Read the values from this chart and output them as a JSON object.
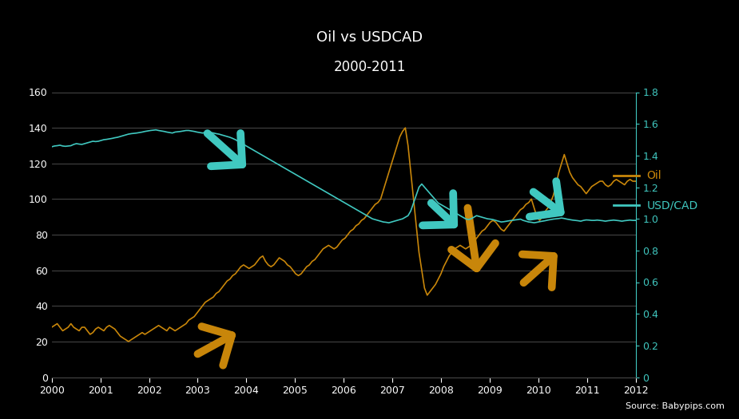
{
  "title_line1": "Oil vs USDCAD",
  "title_line2": "2000-2011",
  "bg_color": "#000000",
  "text_color": "#ffffff",
  "oil_color": "#c8860a",
  "usdcad_color": "#40c8c0",
  "grid_color": "#555555",
  "source_text": "Source: Babypips.com",
  "legend_oil": "Oil",
  "legend_usdcad": "USD/CAD",
  "oil_ylim": [
    0,
    160
  ],
  "usdcad_ylim": [
    0,
    1.8
  ],
  "oil_yticks": [
    0,
    20,
    40,
    60,
    80,
    100,
    120,
    140,
    160
  ],
  "usdcad_yticks": [
    0,
    0.2,
    0.4,
    0.6,
    0.8,
    1.0,
    1.2,
    1.4,
    1.6,
    1.8
  ],
  "xtick_labels": [
    "2000",
    "2001",
    "2002",
    "2003",
    "2004",
    "2005",
    "2006",
    "2007",
    "2008",
    "2009",
    "2010",
    "2011",
    "2012"
  ],
  "oil_data": [
    28,
    29,
    30,
    28,
    26,
    27,
    28,
    30,
    28,
    27,
    26,
    28,
    28,
    26,
    24,
    25,
    27,
    28,
    27,
    26,
    28,
    29,
    28,
    27,
    25,
    23,
    22,
    21,
    20,
    21,
    22,
    23,
    24,
    25,
    24,
    25,
    26,
    27,
    28,
    29,
    28,
    27,
    26,
    28,
    27,
    26,
    27,
    28,
    29,
    30,
    32,
    33,
    34,
    36,
    38,
    40,
    42,
    43,
    44,
    45,
    47,
    48,
    50,
    52,
    54,
    55,
    57,
    58,
    60,
    62,
    63,
    62,
    61,
    62,
    63,
    65,
    67,
    68,
    65,
    63,
    62,
    63,
    65,
    67,
    66,
    65,
    63,
    62,
    60,
    58,
    57,
    58,
    60,
    62,
    63,
    65,
    66,
    68,
    70,
    72,
    73,
    74,
    73,
    72,
    73,
    75,
    77,
    78,
    80,
    82,
    83,
    85,
    86,
    88,
    89,
    91,
    93,
    95,
    97,
    98,
    100,
    105,
    110,
    115,
    120,
    125,
    130,
    135,
    138,
    140,
    130,
    115,
    100,
    85,
    70,
    60,
    50,
    46,
    48,
    50,
    52,
    55,
    58,
    62,
    65,
    68,
    70,
    72,
    73,
    74,
    73,
    72,
    73,
    74,
    76,
    78,
    80,
    82,
    83,
    85,
    87,
    88,
    87,
    85,
    83,
    82,
    84,
    86,
    88,
    90,
    92,
    94,
    95,
    97,
    98,
    100,
    95,
    90,
    88,
    90,
    93,
    95,
    98,
    102,
    108,
    115,
    120,
    125,
    120,
    115,
    112,
    110,
    108,
    107,
    105,
    103,
    105,
    107,
    108,
    109,
    110,
    110,
    108,
    107,
    108,
    110,
    111,
    110,
    109,
    108,
    110,
    111,
    110,
    110
  ],
  "usdcad_data": [
    1.455,
    1.46,
    1.462,
    1.465,
    1.46,
    1.458,
    1.46,
    1.462,
    1.47,
    1.475,
    1.472,
    1.47,
    1.475,
    1.48,
    1.485,
    1.49,
    1.488,
    1.49,
    1.495,
    1.5,
    1.502,
    1.505,
    1.508,
    1.512,
    1.515,
    1.52,
    1.525,
    1.53,
    1.535,
    1.538,
    1.54,
    1.542,
    1.545,
    1.548,
    1.552,
    1.555,
    1.558,
    1.56,
    1.562,
    1.558,
    1.555,
    1.552,
    1.548,
    1.545,
    1.542,
    1.548,
    1.55,
    1.552,
    1.555,
    1.558,
    1.558,
    1.555,
    1.552,
    1.548,
    1.545,
    1.542,
    1.545,
    1.548,
    1.545,
    1.542,
    1.538,
    1.535,
    1.53,
    1.525,
    1.52,
    1.515,
    1.508,
    1.5,
    1.49,
    1.48,
    1.47,
    1.46,
    1.45,
    1.44,
    1.43,
    1.42,
    1.41,
    1.4,
    1.39,
    1.38,
    1.37,
    1.36,
    1.35,
    1.34,
    1.33,
    1.32,
    1.31,
    1.3,
    1.29,
    1.28,
    1.27,
    1.26,
    1.25,
    1.24,
    1.23,
    1.22,
    1.21,
    1.2,
    1.19,
    1.18,
    1.17,
    1.16,
    1.15,
    1.14,
    1.13,
    1.12,
    1.11,
    1.1,
    1.09,
    1.08,
    1.07,
    1.06,
    1.05,
    1.04,
    1.03,
    1.02,
    1.01,
    1.0,
    0.995,
    0.99,
    0.985,
    0.98,
    0.978,
    0.975,
    0.98,
    0.985,
    0.99,
    0.995,
    1.0,
    1.01,
    1.02,
    1.05,
    1.1,
    1.15,
    1.2,
    1.22,
    1.2,
    1.18,
    1.16,
    1.14,
    1.12,
    1.1,
    1.09,
    1.08,
    1.07,
    1.06,
    1.05,
    1.04,
    1.03,
    1.02,
    1.01,
    1.0,
    0.995,
    1.0,
    1.01,
    1.02,
    1.015,
    1.01,
    1.005,
    1.0,
    0.998,
    0.995,
    0.99,
    0.985,
    0.98,
    0.982,
    0.985,
    0.988,
    0.99,
    0.993,
    0.995,
    0.998,
    0.99,
    0.985,
    0.98,
    0.978,
    0.975,
    0.978,
    0.982,
    0.985,
    0.988,
    0.992,
    0.995,
    0.998,
    1.0,
    1.002,
    1.005,
    1.002,
    0.998,
    0.995,
    0.992,
    0.99,
    0.988,
    0.985,
    0.99,
    0.993,
    0.992,
    0.99,
    0.99,
    0.992,
    0.99,
    0.988,
    0.985,
    0.988,
    0.99,
    0.992,
    0.99,
    0.988,
    0.985,
    0.988,
    0.99,
    0.992,
    0.99,
    0.99
  ]
}
